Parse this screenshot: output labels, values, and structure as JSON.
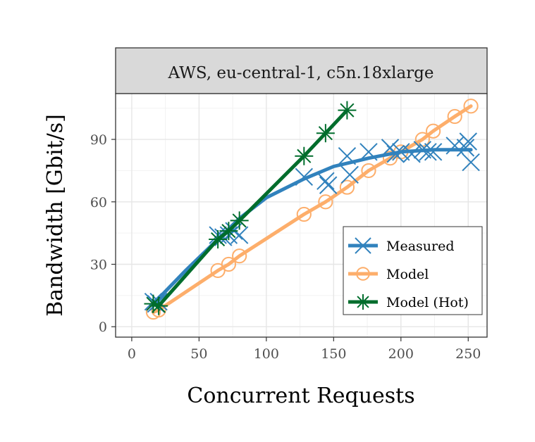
{
  "chart_data": {
    "type": "line",
    "facet_title": "AWS, eu-central-1, c5n.18xlarge",
    "xlabel": "Concurrent Requests",
    "ylabel": "Bandwidth [Gbit/s]",
    "xlim": [
      -12,
      264
    ],
    "ylim": [
      -5,
      112
    ],
    "x_ticks": [
      0,
      50,
      100,
      150,
      200,
      250
    ],
    "y_ticks": [
      0,
      30,
      60,
      90
    ],
    "grid": true,
    "legend_position": "bottom-right",
    "series": [
      {
        "name": "Measured",
        "color": "#3182bd",
        "marker": "x",
        "points": [
          [
            16,
            12
          ],
          [
            18,
            11
          ],
          [
            20,
            12
          ],
          [
            64,
            44
          ],
          [
            68,
            43
          ],
          [
            72,
            44
          ],
          [
            76,
            46
          ],
          [
            80,
            44
          ],
          [
            128,
            72
          ],
          [
            144,
            70
          ],
          [
            146,
            68
          ],
          [
            160,
            82
          ],
          [
            162,
            73
          ],
          [
            176,
            84
          ],
          [
            192,
            86
          ],
          [
            196,
            83
          ],
          [
            200,
            84
          ],
          [
            208,
            83
          ],
          [
            216,
            85
          ],
          [
            220,
            84
          ],
          [
            224,
            84
          ],
          [
            240,
            87
          ],
          [
            248,
            86
          ],
          [
            250,
            89
          ],
          [
            252,
            79
          ]
        ],
        "fit": [
          [
            16,
            11
          ],
          [
            40,
            27
          ],
          [
            64,
            42
          ],
          [
            80,
            52
          ],
          [
            100,
            62
          ],
          [
            128,
            71
          ],
          [
            150,
            77
          ],
          [
            176,
            81
          ],
          [
            200,
            84
          ],
          [
            225,
            85
          ],
          [
            252,
            85
          ]
        ]
      },
      {
        "name": "Model",
        "color": "#fdae6b",
        "marker": "circle",
        "points": [
          [
            16,
            7
          ],
          [
            20,
            8
          ],
          [
            64,
            27
          ],
          [
            72,
            30
          ],
          [
            80,
            34
          ],
          [
            128,
            54
          ],
          [
            144,
            60
          ],
          [
            160,
            67
          ],
          [
            176,
            75
          ],
          [
            192,
            81
          ],
          [
            200,
            84
          ],
          [
            216,
            90
          ],
          [
            224,
            94
          ],
          [
            240,
            101
          ],
          [
            252,
            106
          ]
        ]
      },
      {
        "name": "Model (Hot)",
        "color": "#006d2c",
        "marker": "asterisk",
        "points": [
          [
            16,
            11
          ],
          [
            20,
            10
          ],
          [
            64,
            42
          ],
          [
            72,
            46
          ],
          [
            80,
            51
          ],
          [
            128,
            82
          ],
          [
            144,
            93
          ],
          [
            160,
            104
          ]
        ]
      }
    ]
  }
}
